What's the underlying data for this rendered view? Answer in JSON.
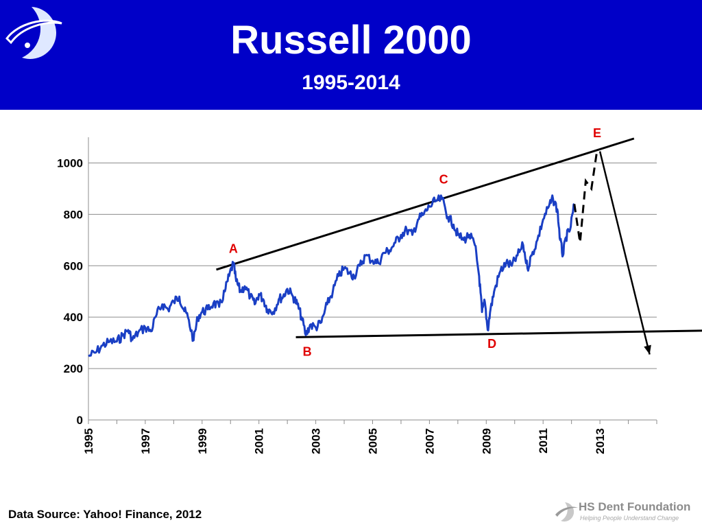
{
  "header": {
    "title": "Russell 2000",
    "subtitle": "1995-2014"
  },
  "footer": {
    "source": "Data Source: Yahoo! Finance, 2012",
    "brand_name": "HS Dent Foundation",
    "brand_tagline": "Helping People Understand Change"
  },
  "colors": {
    "header_bg": "#0000c8",
    "series": "#1a3fc4",
    "annotation": "#e00000",
    "trend": "#000000"
  },
  "icons": {
    "logo": "globe-swoosh-logo",
    "brand_logo": "hs-dent-swoosh-logo"
  },
  "chart_data": {
    "type": "line",
    "title": "Russell 2000",
    "subtitle": "1995-2014",
    "xlabel": "",
    "ylabel": "",
    "xlim": [
      1995,
      2015
    ],
    "ylim": [
      0,
      1100
    ],
    "yticks": [
      0,
      200,
      400,
      600,
      800,
      1000
    ],
    "xticks": [
      "1995",
      "1997",
      "1999",
      "2001",
      "2003",
      "2005",
      "2007",
      "2009",
      "2011",
      "2013"
    ],
    "grid": true,
    "legend": "none",
    "series": [
      {
        "name": "",
        "x": [
          1995.0,
          1995.25,
          1995.5,
          1995.75,
          1996.0,
          1996.2,
          1996.4,
          1996.55,
          1996.75,
          1997.0,
          1997.2,
          1997.4,
          1997.6,
          1997.8,
          1998.0,
          1998.2,
          1998.35,
          1998.5,
          1998.7,
          1998.85,
          1999.0,
          1999.2,
          1999.4,
          1999.6,
          1999.8,
          1999.95,
          2000.1,
          2000.2,
          2000.35,
          2000.5,
          2000.7,
          2000.85,
          2001.0,
          2001.15,
          2001.3,
          2001.5,
          2001.7,
          2001.85,
          2002.0,
          2002.2,
          2002.35,
          2002.5,
          2002.65,
          2002.8,
          2003.0,
          2003.2,
          2003.4,
          2003.6,
          2003.8,
          2004.0,
          2004.2,
          2004.35,
          2004.55,
          2004.75,
          2005.0,
          2005.2,
          2005.4,
          2005.6,
          2005.8,
          2006.0,
          2006.2,
          2006.4,
          2006.6,
          2006.8,
          2007.0,
          2007.2,
          2007.45,
          2007.65,
          2007.85,
          2008.0,
          2008.2,
          2008.4,
          2008.6,
          2008.75,
          2008.85,
          2008.95,
          2009.05,
          2009.15,
          2009.3,
          2009.5,
          2009.7,
          2009.9,
          2010.1,
          2010.3,
          2010.45,
          2010.6,
          2010.8,
          2011.0,
          2011.2,
          2011.35,
          2011.5,
          2011.6,
          2011.7,
          2011.8,
          2011.95,
          2012.1
        ],
        "y": [
          248,
          262,
          290,
          305,
          305,
          328,
          350,
          312,
          340,
          360,
          345,
          410,
          450,
          430,
          460,
          480,
          430,
          400,
          310,
          400,
          420,
          430,
          455,
          440,
          500,
          560,
          610,
          540,
          500,
          520,
          480,
          450,
          490,
          470,
          430,
          420,
          470,
          480,
          510,
          480,
          450,
          400,
          330,
          370,
          360,
          380,
          450,
          500,
          560,
          590,
          570,
          560,
          600,
          640,
          620,
          610,
          650,
          660,
          690,
          720,
          740,
          720,
          780,
          800,
          830,
          850,
          860,
          790,
          760,
          720,
          700,
          720,
          680,
          560,
          420,
          460,
          350,
          430,
          510,
          580,
          610,
          600,
          640,
          680,
          590,
          640,
          700,
          780,
          830,
          860,
          820,
          700,
          640,
          710,
          740,
          840
        ]
      }
    ],
    "projection": {
      "x": [
        2012.1,
        2012.3,
        2012.5,
        2012.7,
        2012.9
      ],
      "y": [
        840,
        690,
        930,
        900,
        1050
      ]
    },
    "trendlines": [
      {
        "x": [
          1999.5,
          2014.2
        ],
        "y": [
          585,
          1095
        ]
      },
      {
        "x": [
          2002.3,
          2018.0
        ],
        "y": [
          322,
          350
        ]
      }
    ],
    "forecast_arrow": {
      "x": [
        2013.0,
        2014.75
      ],
      "y": [
        1045,
        255
      ]
    },
    "annotations": [
      {
        "label": "A",
        "x": 2000.1,
        "y": 650
      },
      {
        "label": "B",
        "x": 2002.7,
        "y": 250
      },
      {
        "label": "C",
        "x": 2007.5,
        "y": 920
      },
      {
        "label": "D",
        "x": 2009.2,
        "y": 280
      },
      {
        "label": "E",
        "x": 2012.9,
        "y": 1100
      }
    ]
  }
}
